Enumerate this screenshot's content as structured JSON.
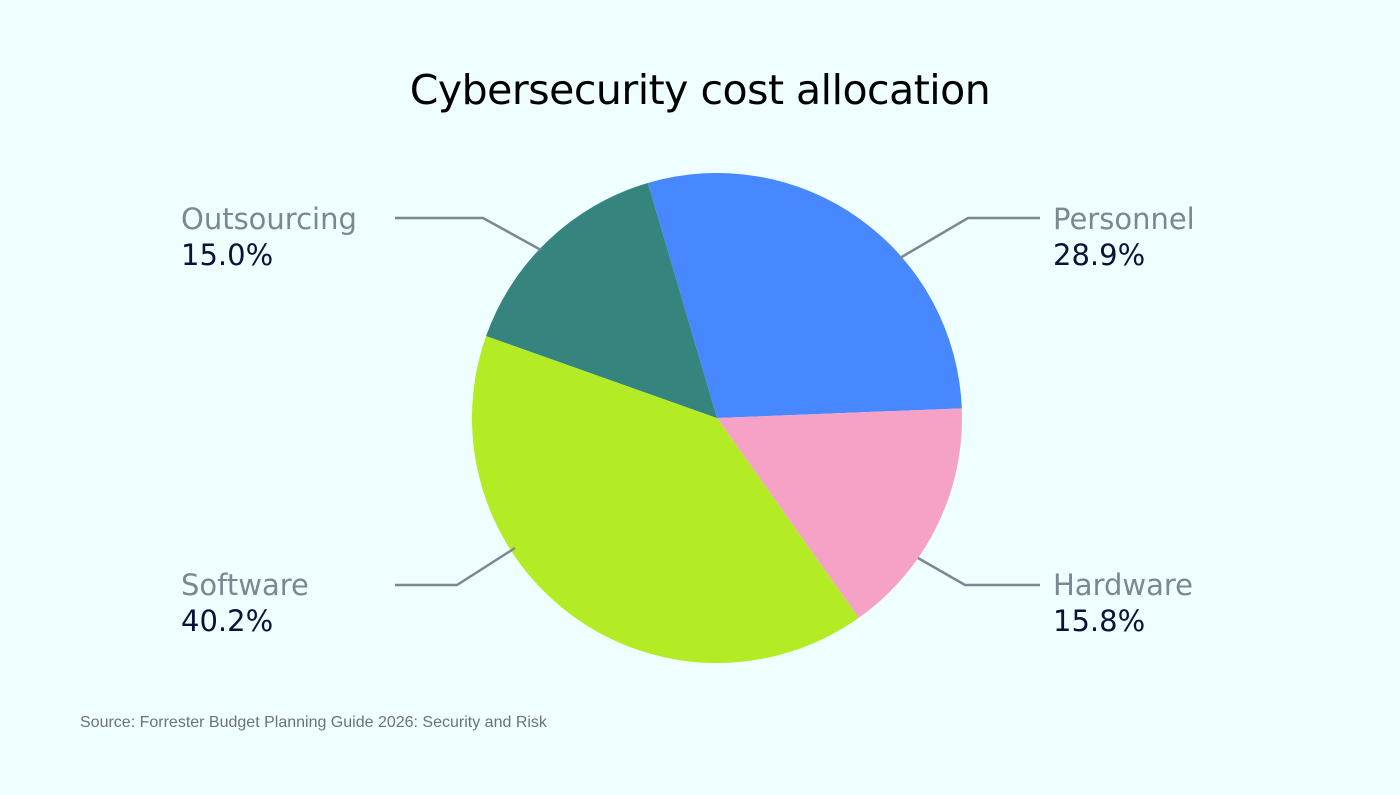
{
  "chart_data": {
    "type": "pie",
    "title": "Cybersecurity cost allocation",
    "slices": [
      {
        "label": "Personnel",
        "value": 28.9,
        "display": "28.9%",
        "color": "#4787ff"
      },
      {
        "label": "Hardware",
        "value": 15.8,
        "display": "15.8%",
        "color": "#f6a2c6"
      },
      {
        "label": "Software",
        "value": 40.2,
        "display": "40.2%",
        "color": "#b3eb24"
      },
      {
        "label": "Outsourcing",
        "value": 15.0,
        "display": "15.0%",
        "color": "#35847e"
      }
    ],
    "source": "Source: Forrester Budget Planning Guide 2026: Security and Risk"
  }
}
